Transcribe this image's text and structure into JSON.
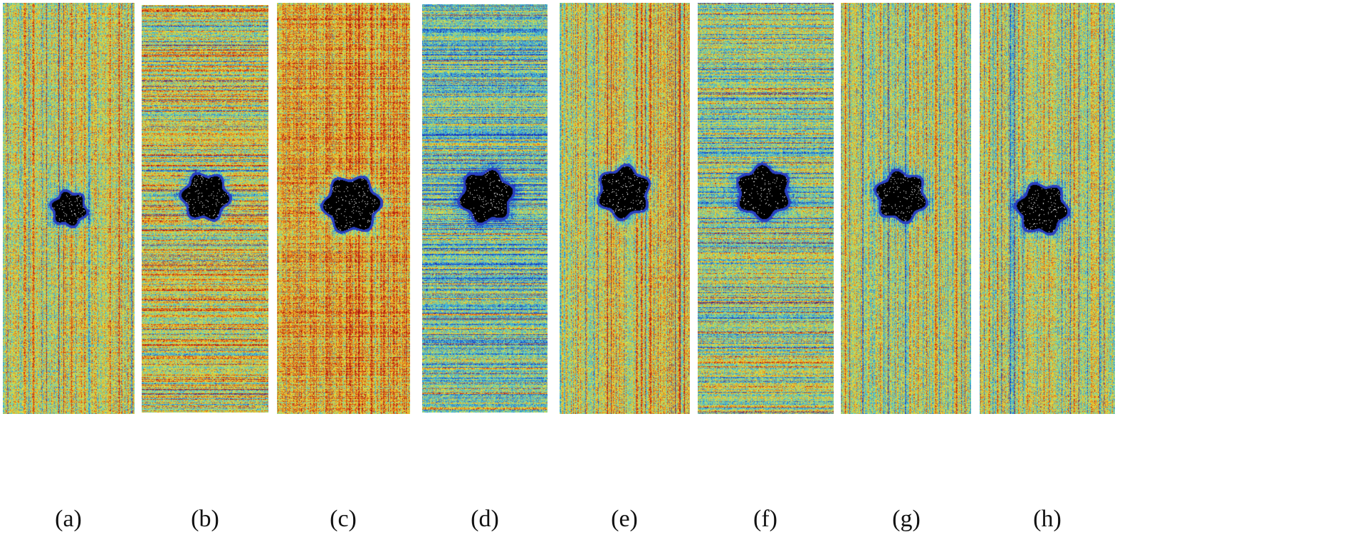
{
  "figure": {
    "panels": [
      {
        "label": "(a)"
      },
      {
        "label": "(b)"
      },
      {
        "label": "(c)"
      },
      {
        "label": "(d)"
      },
      {
        "label": "(e)"
      },
      {
        "label": "(f)"
      },
      {
        "label": "(g)"
      },
      {
        "label": "(h)"
      }
    ]
  },
  "colors": {
    "colormap": [
      "#1a2fb8",
      "#2f7fd6",
      "#3fc0e0",
      "#8fd38a",
      "#e8e23a",
      "#f0a020",
      "#d23a14",
      "#a81010"
    ],
    "hole": "#000000",
    "hole_rim": "#2a40c0",
    "hole_speckle": "#ffffff"
  }
}
